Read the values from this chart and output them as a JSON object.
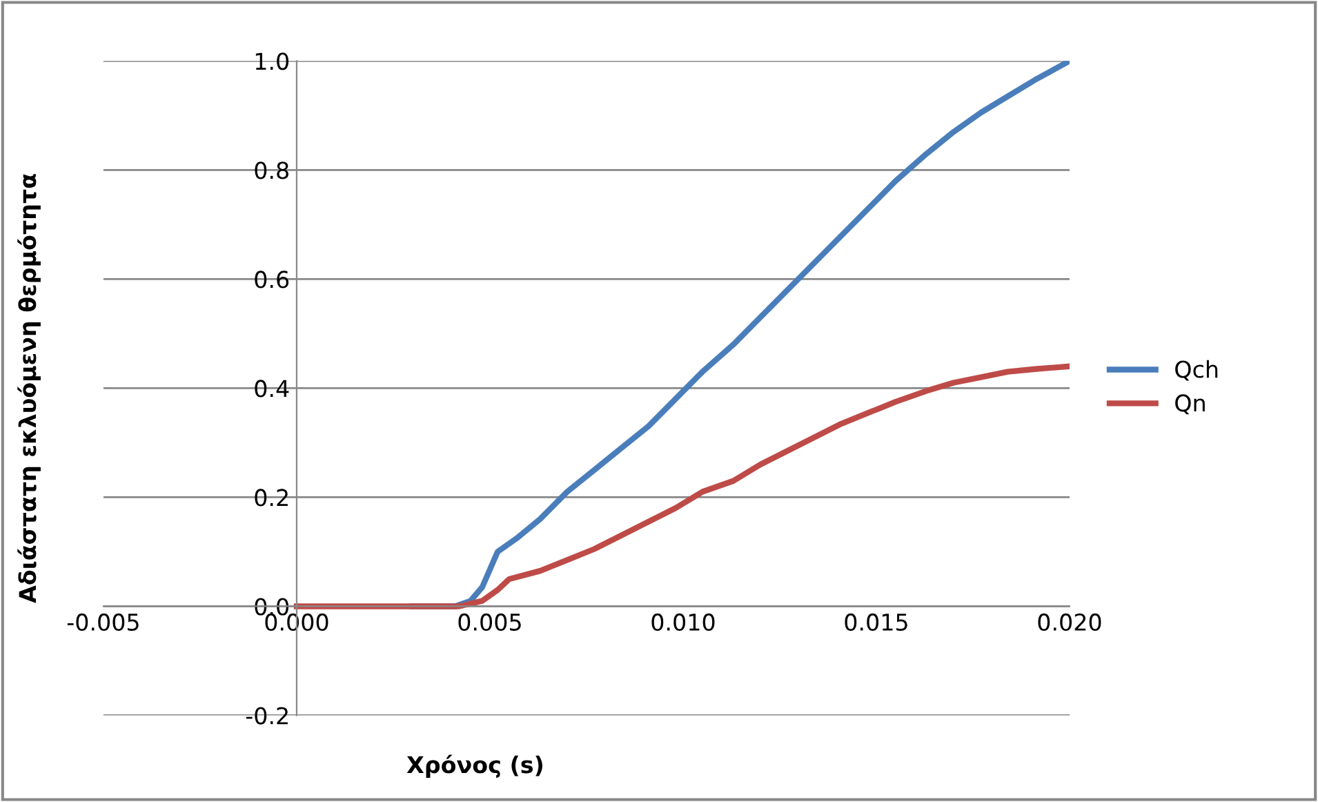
{
  "chart_data": {
    "type": "line",
    "xlabel": "Χρόνος (s)",
    "ylabel": "Αδιάστατη εκλυόμενη θερμότητα",
    "xlim": [
      -0.005,
      0.02
    ],
    "xticks": [
      {
        "value": -0.005,
        "label": "-0.005"
      },
      {
        "value": 0,
        "label": "0.000"
      },
      {
        "value": 0.005,
        "label": "0.005"
      },
      {
        "value": 0.01,
        "label": "0.010"
      },
      {
        "value": 0.015,
        "label": "0.015"
      },
      {
        "value": 0.02,
        "label": "0.020"
      }
    ],
    "ylim": [
      -0.2,
      1.0
    ],
    "yticks": [
      {
        "value": -0.2,
        "label": "-0.2"
      },
      {
        "value": 0,
        "label": "0.0"
      },
      {
        "value": 0.2,
        "label": "0.2"
      },
      {
        "value": 0.4,
        "label": "0.4"
      },
      {
        "value": 0.6,
        "label": "0.6"
      },
      {
        "value": 0.8,
        "label": "0.8"
      },
      {
        "value": 1.0,
        "label": "1.0"
      }
    ],
    "grid": "y",
    "legend": "right",
    "marker": "none",
    "line_style": "solid",
    "series": [
      {
        "name": "Qch",
        "color": "#4a7ebb",
        "x": [
          0.003,
          0.0041,
          0.0045,
          0.0048,
          0.0052,
          0.0057,
          0.0063,
          0.007,
          0.0077,
          0.0084,
          0.0091,
          0.0098,
          0.0105,
          0.0113,
          0.012,
          0.0127,
          0.0134,
          0.0141,
          0.0148,
          0.0155,
          0.0163,
          0.017,
          0.0177,
          0.0184,
          0.0191,
          0.02
        ],
        "values": [
          0,
          0,
          0.01,
          0.035,
          0.1,
          0.125,
          0.16,
          0.21,
          0.25,
          0.29,
          0.33,
          0.38,
          0.43,
          0.48,
          0.53,
          0.58,
          0.63,
          0.68,
          0.73,
          0.78,
          0.83,
          0.87,
          0.905,
          0.935,
          0.965,
          1.0
        ]
      },
      {
        "name": "Qn",
        "color": "#be4b48",
        "x": [
          0,
          0.001,
          0.002,
          0.003,
          0.0042,
          0.0048,
          0.0052,
          0.0055,
          0.0063,
          0.007,
          0.0077,
          0.0084,
          0.0091,
          0.0098,
          0.0105,
          0.0113,
          0.012,
          0.0127,
          0.0134,
          0.0141,
          0.0148,
          0.0155,
          0.0163,
          0.017,
          0.0177,
          0.0184,
          0.0191,
          0.02
        ],
        "values": [
          0,
          0,
          0,
          0,
          0,
          0.01,
          0.03,
          0.05,
          0.065,
          0.085,
          0.105,
          0.13,
          0.155,
          0.18,
          0.21,
          0.23,
          0.26,
          0.285,
          0.31,
          0.335,
          0.355,
          0.375,
          0.395,
          0.41,
          0.42,
          0.43,
          0.435,
          0.44
        ]
      }
    ]
  }
}
